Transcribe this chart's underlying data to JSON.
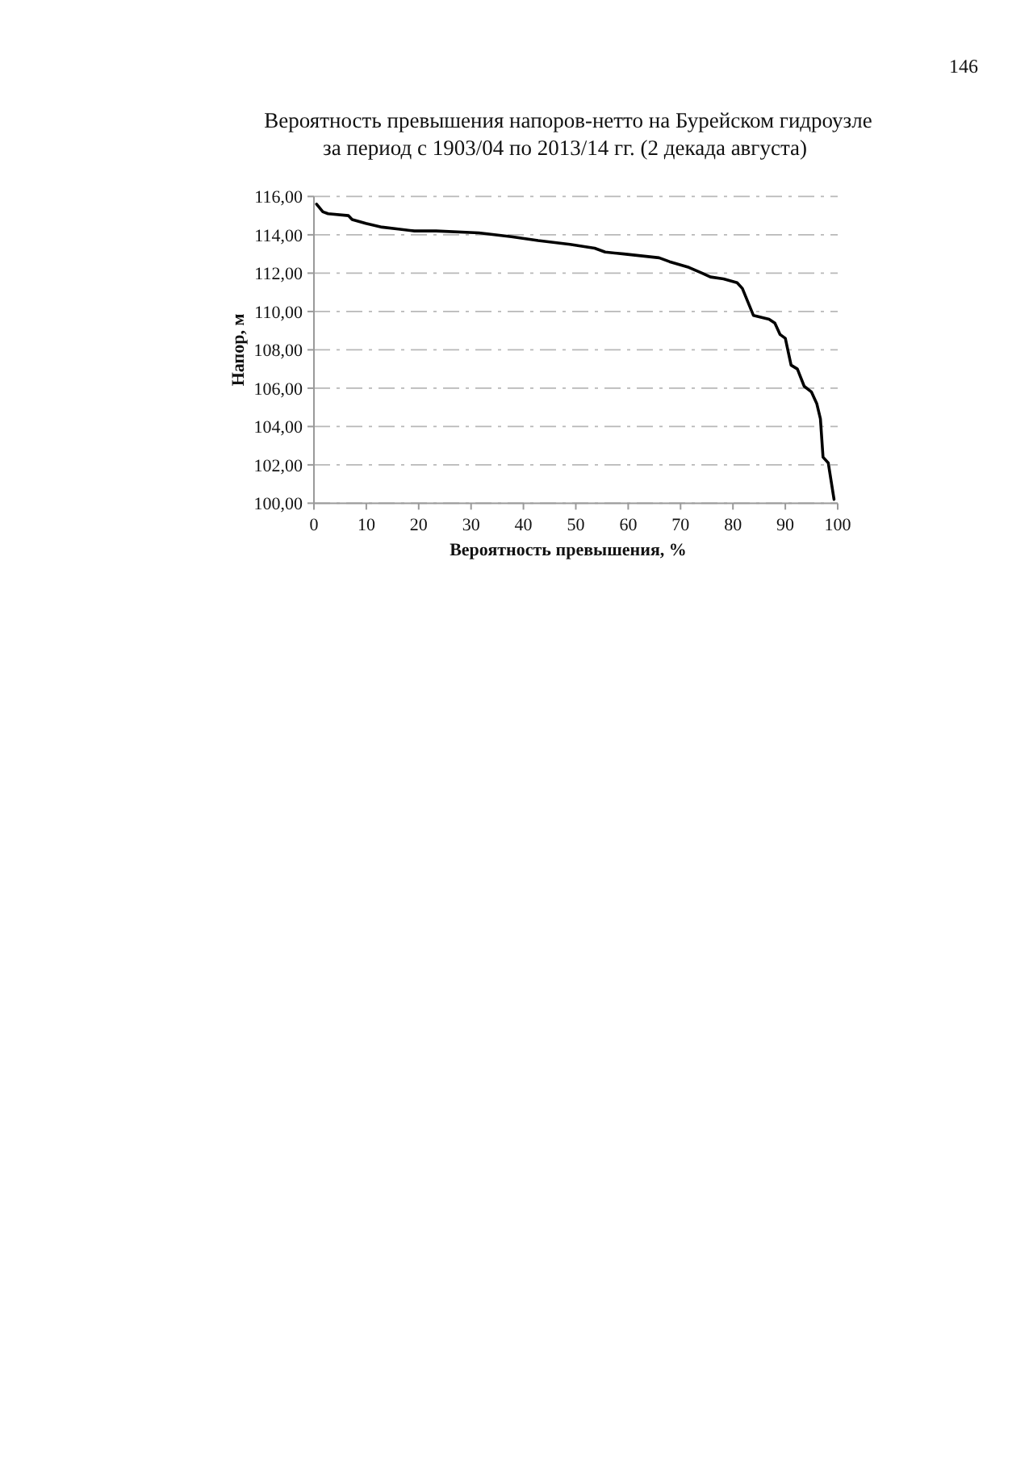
{
  "chart_data": {
    "type": "line",
    "title": "Вероятность превышения напоров-нетто на Бурейском гидроузле",
    "subtitle": "за период с 1903/04 по 2013/14 гг. (2 декада августа)",
    "xlabel": "Вероятность превышения, %",
    "ylabel": "Напор, м",
    "annotations": [
      "146"
    ],
    "x": [
      0.5,
      1.7,
      2.7,
      6.6,
      7.3,
      9.9,
      13,
      16.1,
      19.2,
      23.3,
      31.5,
      37.7,
      42.8,
      48.9,
      53.6,
      55.6,
      59.2,
      65.9,
      67.9,
      71.6,
      74.1,
      75.7,
      78.2,
      80.8,
      81.8,
      83.9,
      86.9,
      88,
      89,
      90,
      91.1,
      92.3,
      93.6,
      95,
      96,
      96.7,
      97.2,
      98.2,
      99.3
    ],
    "series": [
      {
        "color": "#000000",
        "values": [
          115.6,
          115.2,
          115.1,
          115.0,
          114.8,
          114.6,
          114.4,
          114.3,
          114.2,
          114.2,
          114.1,
          113.9,
          113.7,
          113.5,
          113.3,
          113.1,
          113.0,
          112.8,
          112.6,
          112.3,
          112.0,
          111.8,
          111.7,
          111.5,
          111.2,
          109.8,
          109.6,
          109.4,
          108.8,
          108.6,
          107.2,
          107.0,
          106.1,
          105.8,
          105.2,
          104.4,
          102.4,
          102.1,
          100.2
        ]
      }
    ],
    "xlim": [
      0,
      100
    ],
    "ylim": [
      100,
      116
    ],
    "xticks": [
      0,
      10,
      20,
      30,
      40,
      50,
      60,
      70,
      80,
      90,
      100
    ],
    "yticks": [
      {
        "value": 100,
        "label": "100,00"
      },
      {
        "value": 102,
        "label": "102,00"
      },
      {
        "value": 104,
        "label": "104,00"
      },
      {
        "value": 106,
        "label": "106,00"
      },
      {
        "value": 108,
        "label": "108,00"
      },
      {
        "value": 110,
        "label": "110,00"
      },
      {
        "value": 112,
        "label": "112,00"
      },
      {
        "value": 114,
        "label": "114,00"
      },
      {
        "value": 116,
        "label": "116,00"
      }
    ],
    "grid": "y",
    "marker": "none",
    "line_style": "solid"
  }
}
